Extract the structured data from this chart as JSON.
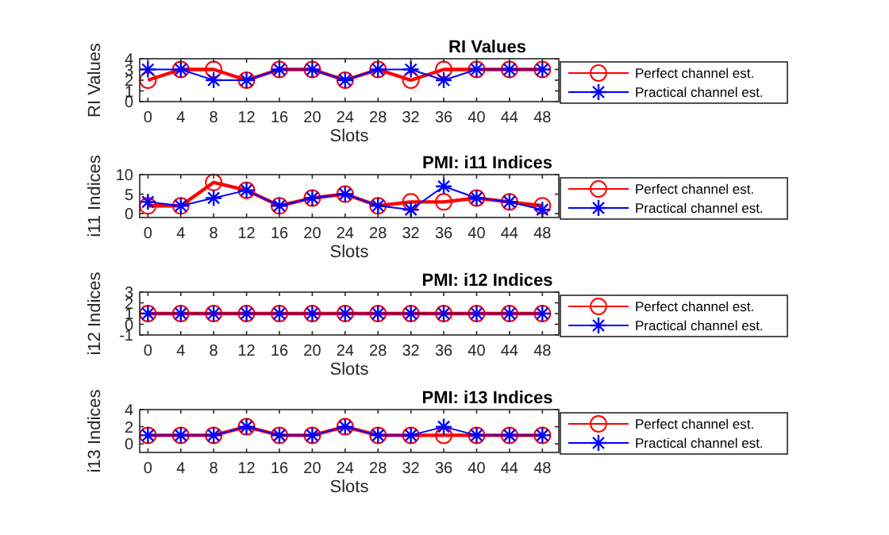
{
  "chart_data": [
    {
      "type": "line",
      "title": "RI Values",
      "xlabel": "Slots",
      "ylabel": "RI Values",
      "x": [
        0,
        4,
        8,
        12,
        16,
        20,
        24,
        28,
        32,
        36,
        40,
        44,
        48
      ],
      "xlim": [
        -1,
        50
      ],
      "xticks": [
        0,
        4,
        8,
        12,
        16,
        20,
        24,
        28,
        32,
        36,
        40,
        44,
        48
      ],
      "ylim": [
        0,
        4
      ],
      "yticks": [
        0,
        1,
        2,
        3,
        4
      ],
      "legend": "right",
      "line_style": "solid",
      "series": [
        {
          "name": "Perfect channel est.",
          "color": "#ff0000",
          "marker": "circle",
          "values": [
            2,
            3,
            3,
            2,
            3,
            3,
            2,
            3,
            2,
            3,
            3,
            3,
            3
          ]
        },
        {
          "name": "Practical channel est.",
          "color": "#0000ff",
          "marker": "cross",
          "values": [
            3,
            3,
            2,
            2,
            3,
            3,
            2,
            3,
            3,
            2,
            3,
            3,
            3
          ]
        }
      ]
    },
    {
      "type": "line",
      "title": "PMI: i11 Indices",
      "xlabel": "Slots",
      "ylabel": "i11 Indices",
      "x": [
        0,
        4,
        8,
        12,
        16,
        20,
        24,
        28,
        32,
        36,
        40,
        44,
        48
      ],
      "xlim": [
        -1,
        50
      ],
      "xticks": [
        0,
        4,
        8,
        12,
        16,
        20,
        24,
        28,
        32,
        36,
        40,
        44,
        48
      ],
      "ylim": [
        -1,
        10
      ],
      "yticks": [
        0,
        5,
        10
      ],
      "legend": "right",
      "line_style": "solid",
      "series": [
        {
          "name": "Perfect channel est.",
          "color": "#ff0000",
          "marker": "circle",
          "values": [
            2,
            2,
            8,
            6,
            2,
            4,
            5,
            2,
            3,
            3,
            4,
            3,
            2
          ]
        },
        {
          "name": "Practical channel est.",
          "color": "#0000ff",
          "marker": "cross",
          "values": [
            3,
            2,
            4,
            6,
            2,
            4,
            5,
            2,
            1,
            7,
            4,
            3,
            1
          ]
        }
      ]
    },
    {
      "type": "line",
      "title": "PMI: i12 Indices",
      "xlabel": "Slots",
      "ylabel": "i12 Indices",
      "x": [
        0,
        4,
        8,
        12,
        16,
        20,
        24,
        28,
        32,
        36,
        40,
        44,
        48
      ],
      "xlim": [
        -1,
        50
      ],
      "xticks": [
        0,
        4,
        8,
        12,
        16,
        20,
        24,
        28,
        32,
        36,
        40,
        44,
        48
      ],
      "ylim": [
        -1,
        3
      ],
      "yticks": [
        -1,
        0,
        1,
        2,
        3
      ],
      "legend": "right",
      "line_style": "solid",
      "series": [
        {
          "name": "Perfect channel est.",
          "color": "#ff0000",
          "marker": "circle",
          "values": [
            1,
            1,
            1,
            1,
            1,
            1,
            1,
            1,
            1,
            1,
            1,
            1,
            1
          ]
        },
        {
          "name": "Practical channel est.",
          "color": "#0000ff",
          "marker": "cross",
          "values": [
            1,
            1,
            1,
            1,
            1,
            1,
            1,
            1,
            1,
            1,
            1,
            1,
            1
          ]
        }
      ]
    },
    {
      "type": "line",
      "title": "PMI: i13 Indices",
      "xlabel": "Slots",
      "ylabel": "i13 Indices",
      "x": [
        0,
        4,
        8,
        12,
        16,
        20,
        24,
        28,
        32,
        36,
        40,
        44,
        48
      ],
      "xlim": [
        -1,
        50
      ],
      "xticks": [
        0,
        4,
        8,
        12,
        16,
        20,
        24,
        28,
        32,
        36,
        40,
        44,
        48
      ],
      "ylim": [
        -1,
        4
      ],
      "yticks": [
        0,
        2,
        4
      ],
      "legend": "right",
      "line_style": "solid",
      "series": [
        {
          "name": "Perfect channel est.",
          "color": "#ff0000",
          "marker": "circle",
          "values": [
            1,
            1,
            1,
            2,
            1,
            1,
            2,
            1,
            1,
            1,
            1,
            1,
            1
          ]
        },
        {
          "name": "Practical channel est.",
          "color": "#0000ff",
          "marker": "cross",
          "values": [
            1,
            1,
            1,
            2,
            1,
            1,
            2,
            1,
            1,
            2,
            1,
            1,
            1
          ]
        }
      ]
    }
  ]
}
